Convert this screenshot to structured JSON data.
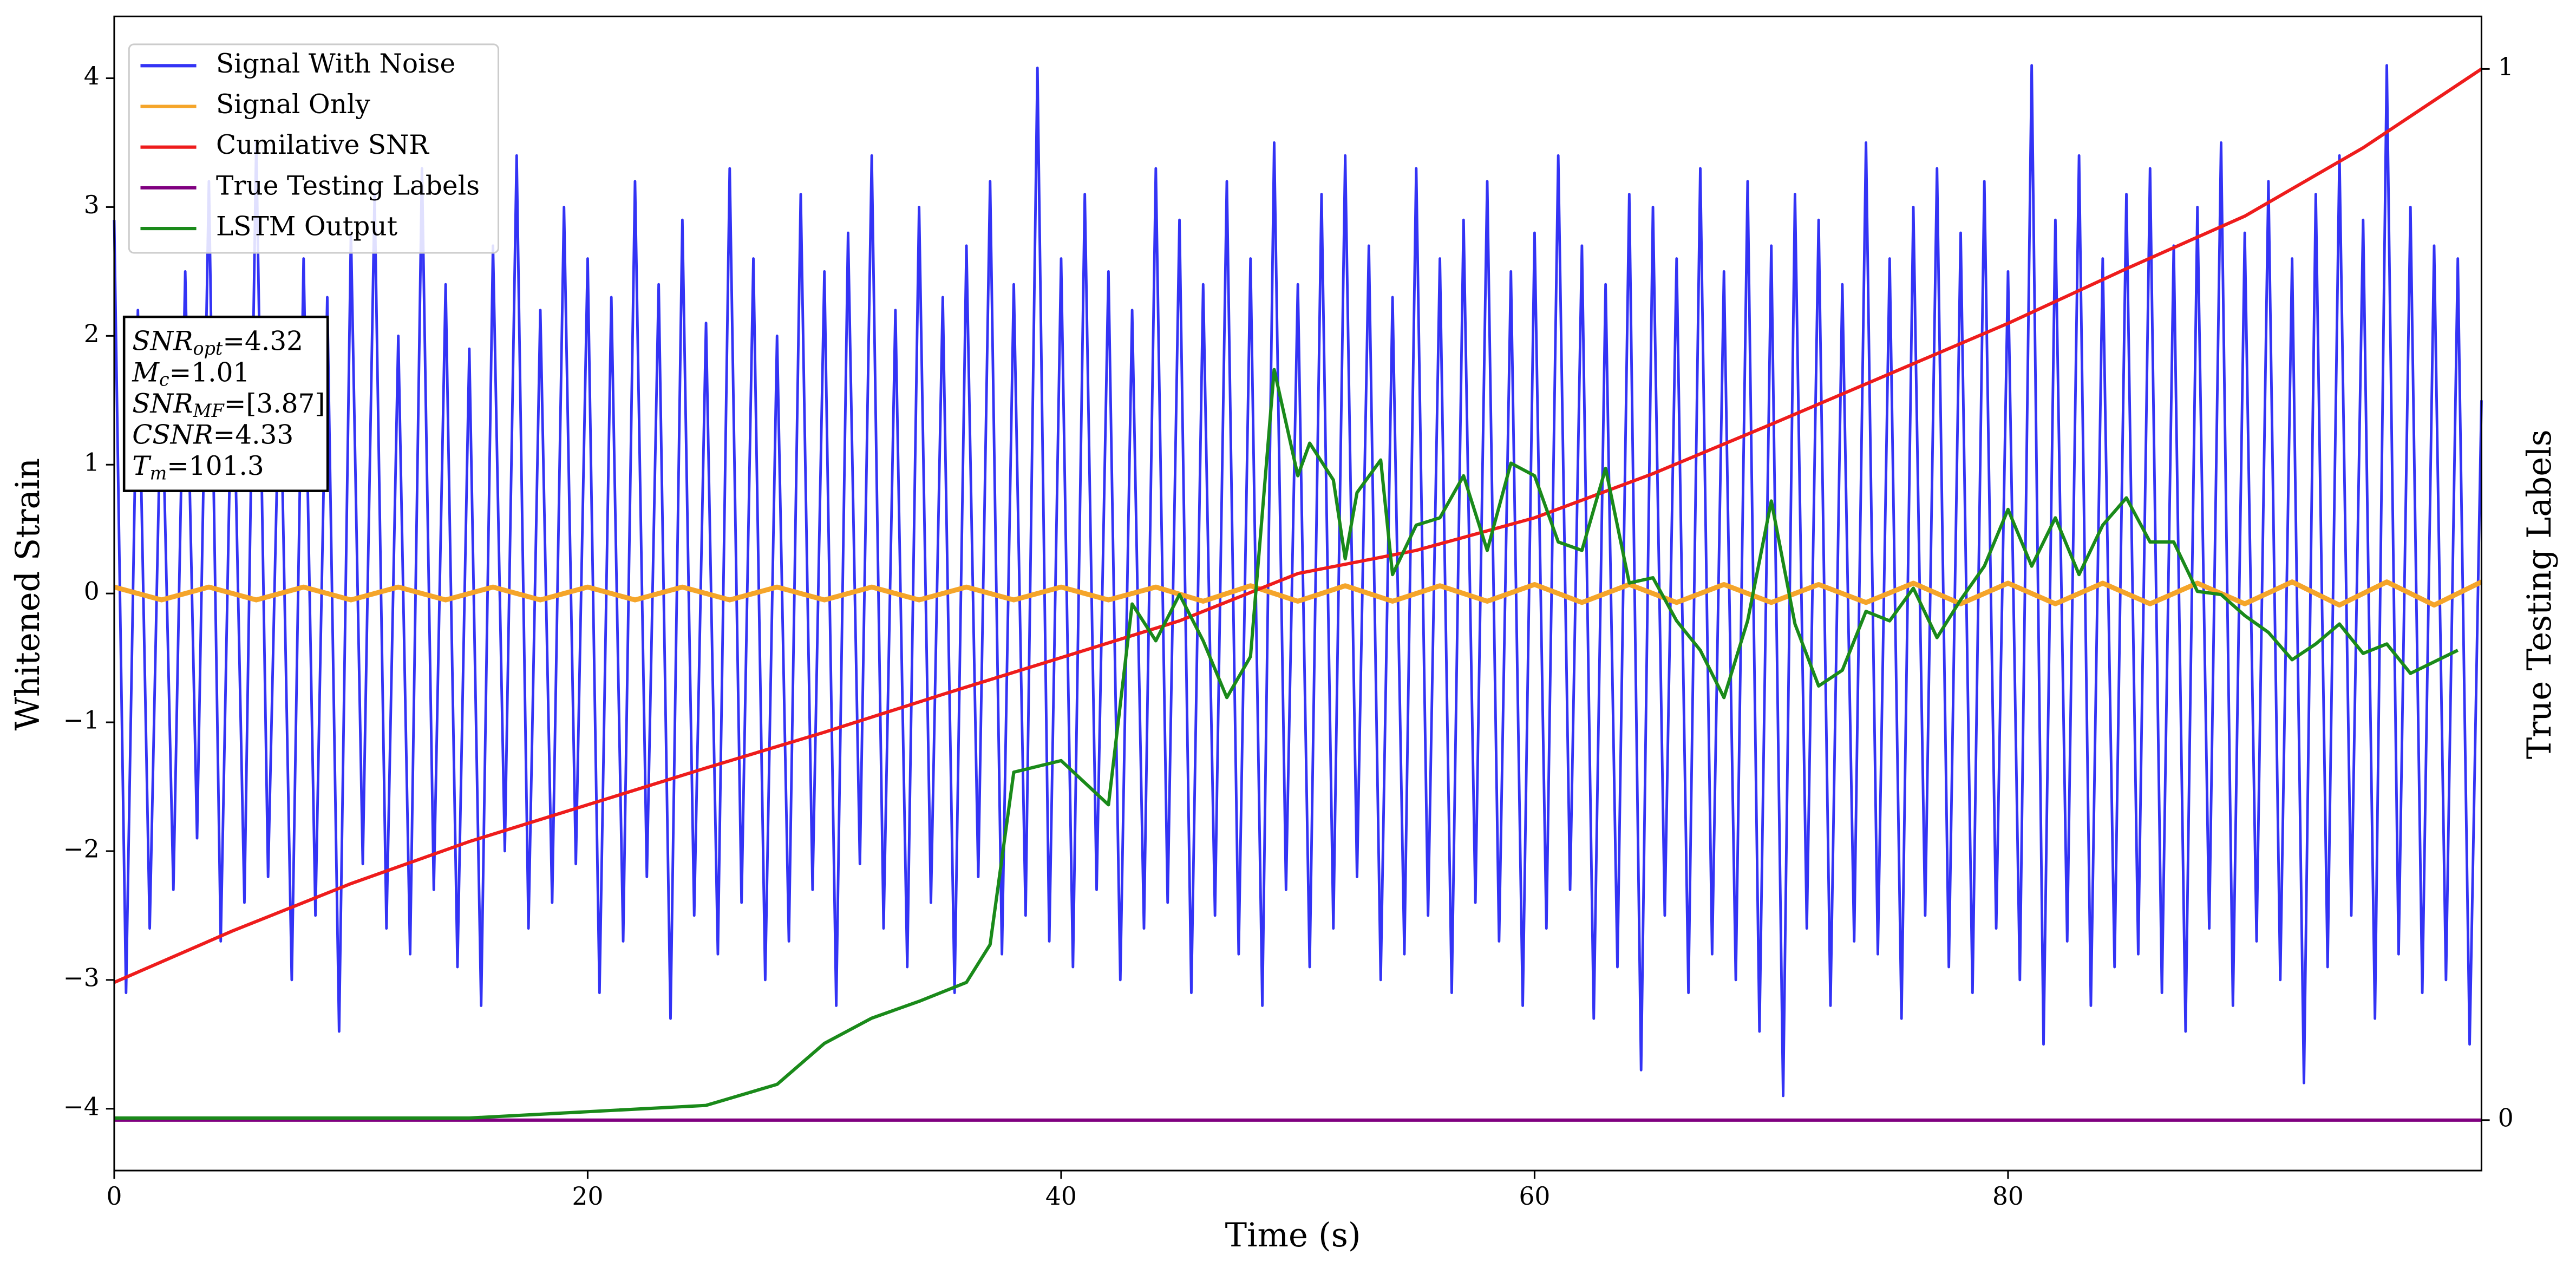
{
  "chart_data": {
    "type": "line",
    "xlabel": "Time (s)",
    "ylabel": "Whitened Strain",
    "y2label": "True Testing Labels",
    "xlim": [
      0,
      100
    ],
    "ylim": [
      -4.48,
      4.48
    ],
    "y2lim": [
      -0.048,
      1.05
    ],
    "xticks": [
      0,
      20,
      40,
      60,
      80
    ],
    "yticks": [
      {
        "value": -4,
        "label": "−4"
      },
      {
        "value": -3,
        "label": "−3"
      },
      {
        "value": -2,
        "label": "−2"
      },
      {
        "value": -1,
        "label": "−1"
      },
      0,
      1,
      2,
      3,
      4
    ],
    "y2ticks": [
      0,
      1
    ],
    "legend": "upper left",
    "annotations": [
      {
        "name": "SNR",
        "sub": "opt",
        "text": "=4.32"
      },
      {
        "name": "M",
        "sub": "c",
        "text": "=1.01"
      },
      {
        "name": "SNR",
        "sub": "MF",
        "text": "=[3.87]"
      },
      {
        "name": "CSNR",
        "text": "=4.33"
      },
      {
        "name": "T",
        "sub": "m",
        "text": "=101.3"
      }
    ],
    "series": [
      {
        "name": "Signal With Noise",
        "color": "#3333f5",
        "x": [
          0,
          0.5,
          1,
          1.5,
          2,
          2.5,
          3,
          3.5,
          4,
          4.5,
          5,
          5.5,
          6,
          6.5,
          7,
          7.5,
          8,
          8.5,
          9,
          9.5,
          10,
          10.5,
          11,
          11.5,
          12,
          12.5,
          13,
          13.5,
          14,
          14.5,
          15,
          15.5,
          16,
          16.5,
          17,
          17.5,
          18,
          18.5,
          19,
          19.5,
          20,
          20.5,
          21,
          21.5,
          22,
          22.5,
          23,
          23.5,
          24,
          24.5,
          25,
          25.5,
          26,
          26.5,
          27,
          27.5,
          28,
          28.5,
          29,
          29.5,
          30,
          30.5,
          31,
          31.5,
          32,
          32.5,
          33,
          33.5,
          34,
          34.5,
          35,
          35.5,
          36,
          36.5,
          37,
          37.5,
          38,
          38.5,
          39,
          39.5,
          40,
          40.5,
          41,
          41.5,
          42,
          42.5,
          43,
          43.5,
          44,
          44.5,
          45,
          45.5,
          46,
          46.5,
          47,
          47.5,
          48,
          48.5,
          49,
          49.5,
          50,
          50.5,
          51,
          51.5,
          52,
          52.5,
          53,
          53.5,
          54,
          54.5,
          55,
          55.5,
          56,
          56.5,
          57,
          57.5,
          58,
          58.5,
          59,
          59.5,
          60,
          60.5,
          61,
          61.5,
          62,
          62.5,
          63,
          63.5,
          64,
          64.5,
          65,
          65.5,
          66,
          66.5,
          67,
          67.5,
          68,
          68.5,
          69,
          69.5,
          70,
          70.5,
          71,
          71.5,
          72,
          72.5,
          73,
          73.5,
          74,
          74.5,
          75,
          75.5,
          76,
          76.5,
          77,
          77.5,
          78,
          78.5,
          79,
          79.5,
          80,
          80.5,
          81,
          81.5,
          82,
          82.5,
          83,
          83.5,
          84,
          84.5,
          85,
          85.5,
          86,
          86.5,
          87,
          87.5,
          88,
          88.5,
          89,
          89.5,
          90,
          90.5,
          91,
          91.5,
          92,
          92.5,
          93,
          93.5,
          94,
          94.5,
          95,
          95.5,
          96,
          96.5,
          97,
          97.5,
          98,
          98.5,
          99,
          99.5,
          100
        ],
        "values": [
          2.9,
          -3.1,
          2.2,
          -2.6,
          1.8,
          -2.3,
          2.5,
          -1.9,
          3.2,
          -2.7,
          2.1,
          -2.4,
          3.5,
          -2.2,
          1.9,
          -3.0,
          2.6,
          -2.5,
          2.3,
          -3.4,
          2.8,
          -2.1,
          3.1,
          -2.6,
          2.0,
          -2.8,
          3.3,
          -2.3,
          2.4,
          -2.9,
          1.9,
          -3.2,
          2.7,
          -2.0,
          3.4,
          -2.6,
          2.2,
          -2.4,
          3.0,
          -2.1,
          2.6,
          -3.1,
          2.3,
          -2.7,
          3.2,
          -2.2,
          2.4,
          -3.3,
          2.9,
          -2.5,
          2.1,
          -2.8,
          3.3,
          -2.4,
          2.6,
          -3.0,
          2.0,
          -2.7,
          3.1,
          -2.3,
          2.5,
          -3.2,
          2.8,
          -2.1,
          3.4,
          -2.6,
          2.2,
          -2.9,
          3.0,
          -2.4,
          2.3,
          -3.1,
          2.7,
          -2.2,
          3.2,
          -2.8,
          2.4,
          -2.5,
          4.08,
          -2.7,
          2.6,
          -2.9,
          3.1,
          -2.3,
          2.5,
          -3.0,
          2.2,
          -2.6,
          3.3,
          -2.4,
          2.9,
          -3.1,
          2.4,
          -2.5,
          3.2,
          -2.8,
          2.6,
          -3.2,
          3.5,
          -2.3,
          2.4,
          -2.9,
          3.1,
          -2.6,
          3.4,
          -2.2,
          2.7,
          -3.0,
          2.3,
          -2.8,
          3.3,
          -2.5,
          2.6,
          -3.1,
          2.9,
          -2.4,
          3.2,
          -2.7,
          2.5,
          -3.2,
          2.8,
          -2.6,
          3.4,
          -2.3,
          2.7,
          -3.3,
          2.4,
          -2.9,
          3.1,
          -3.7,
          3.0,
          -2.5,
          2.6,
          -3.1,
          3.3,
          -2.8,
          2.5,
          -3.0,
          3.2,
          -3.4,
          2.7,
          -3.9,
          3.1,
          -2.6,
          2.9,
          -3.2,
          2.4,
          -2.7,
          3.5,
          -2.8,
          2.6,
          -3.3,
          3.0,
          -2.5,
          3.3,
          -2.9,
          2.8,
          -3.1,
          3.2,
          -2.6,
          2.5,
          -3.0,
          4.1,
          -3.5,
          2.9,
          -2.7,
          3.4,
          -3.2,
          2.6,
          -2.9,
          3.1,
          -2.8,
          3.3,
          -3.1,
          2.7,
          -3.4,
          3.0,
          -2.6,
          3.5,
          -3.2,
          2.8,
          -2.7,
          3.2,
          -3.0,
          2.6,
          -3.8,
          3.1,
          -2.9,
          3.4,
          -2.5,
          2.9,
          -3.3,
          4.1,
          -2.8,
          3.0,
          -3.1,
          2.7,
          -3.0,
          2.6,
          -3.5,
          1.5
        ]
      },
      {
        "name": "Signal Only",
        "color": "#f5a52a",
        "x": [
          0,
          2,
          4,
          6,
          8,
          10,
          12,
          14,
          16,
          18,
          20,
          22,
          24,
          26,
          28,
          30,
          32,
          34,
          36,
          38,
          40,
          42,
          44,
          46,
          48,
          50,
          52,
          54,
          56,
          58,
          60,
          62,
          64,
          66,
          68,
          70,
          72,
          74,
          76,
          78,
          80,
          82,
          84,
          86,
          88,
          90,
          92,
          94,
          96,
          98,
          100
        ],
        "values": [
          0.05,
          -0.05,
          0.05,
          -0.05,
          0.05,
          -0.05,
          0.05,
          -0.05,
          0.05,
          -0.05,
          0.05,
          -0.05,
          0.05,
          -0.05,
          0.05,
          -0.05,
          0.05,
          -0.05,
          0.05,
          -0.05,
          0.05,
          -0.05,
          0.05,
          -0.06,
          0.06,
          -0.06,
          0.06,
          -0.06,
          0.06,
          -0.06,
          0.07,
          -0.07,
          0.07,
          -0.07,
          0.07,
          -0.07,
          0.07,
          -0.07,
          0.08,
          -0.08,
          0.08,
          -0.08,
          0.08,
          -0.08,
          0.08,
          -0.08,
          0.09,
          -0.09,
          0.09,
          -0.09,
          0.09
        ]
      },
      {
        "name": "Cumilative SNR",
        "color": "#ee1c1c",
        "axis": "y2",
        "x": [
          0,
          5,
          10,
          15,
          20,
          25,
          30,
          35,
          40,
          45,
          50,
          55,
          60,
          65,
          70,
          75,
          80,
          85,
          90,
          95,
          100
        ],
        "values": [
          0.131,
          0.18,
          0.225,
          0.265,
          0.3,
          0.335,
          0.369,
          0.405,
          0.44,
          0.475,
          0.52,
          0.542,
          0.573,
          0.615,
          0.662,
          0.71,
          0.758,
          0.81,
          0.86,
          0.925,
          1.0
        ]
      },
      {
        "name": "True Testing Labels",
        "color": "#800080",
        "axis": "y2",
        "x": [
          0,
          100
        ],
        "values": [
          0,
          0
        ]
      },
      {
        "name": "LSTM Output",
        "color": "#1a8a1a",
        "axis": "y2",
        "x": [
          0,
          5,
          10,
          15,
          20,
          25,
          28,
          30,
          32,
          34,
          36,
          37,
          38,
          40,
          42,
          43,
          44,
          45,
          46,
          47,
          48,
          49,
          50,
          50.5,
          51.5,
          52,
          52.5,
          53.5,
          54,
          55,
          56,
          57,
          58,
          59,
          60,
          61,
          62,
          63,
          64,
          65,
          66,
          67,
          68,
          69,
          70,
          71,
          72,
          73,
          74,
          75,
          76,
          77,
          78,
          79,
          80,
          81,
          82,
          83,
          84,
          85,
          86,
          87,
          88,
          89,
          90,
          91,
          92,
          93,
          94,
          95,
          96,
          97,
          98,
          99
        ],
        "values": [
          0.002,
          0.002,
          0.002,
          0.002,
          0.008,
          0.014,
          0.034,
          0.073,
          0.097,
          0.113,
          0.131,
          0.167,
          0.331,
          0.342,
          0.3,
          0.491,
          0.456,
          0.5,
          0.456,
          0.402,
          0.441,
          0.714,
          0.613,
          0.644,
          0.609,
          0.534,
          0.597,
          0.628,
          0.519,
          0.566,
          0.573,
          0.613,
          0.542,
          0.625,
          0.613,
          0.55,
          0.542,
          0.62,
          0.511,
          0.516,
          0.475,
          0.447,
          0.402,
          0.475,
          0.589,
          0.472,
          0.413,
          0.428,
          0.484,
          0.475,
          0.506,
          0.459,
          0.495,
          0.527,
          0.581,
          0.527,
          0.573,
          0.519,
          0.566,
          0.592,
          0.55,
          0.55,
          0.503,
          0.5,
          0.48,
          0.464,
          0.438,
          0.453,
          0.472,
          0.444,
          0.453,
          0.425,
          0.436,
          0.447
        ]
      }
    ]
  }
}
